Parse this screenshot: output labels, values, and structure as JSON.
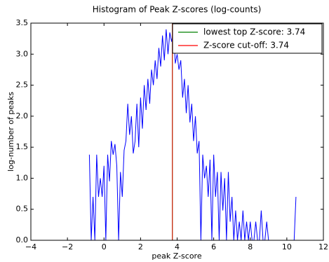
{
  "chart_data": {
    "type": "line",
    "title": "Histogram of Peak Z-scores (log-counts)",
    "xlabel": "peak Z-score",
    "ylabel": "log-number of peaks",
    "color": "#0000ff",
    "x": [
      -0.8,
      -0.7,
      -0.6,
      -0.5,
      -0.4,
      -0.3,
      -0.2,
      -0.1,
      0.0,
      0.1,
      0.2,
      0.3,
      0.4,
      0.5,
      0.6,
      0.7,
      0.8,
      0.9,
      1.0,
      1.1,
      1.2,
      1.3,
      1.4,
      1.5,
      1.6,
      1.7,
      1.8,
      1.9,
      2.0,
      2.1,
      2.2,
      2.3,
      2.4,
      2.5,
      2.6,
      2.7,
      2.8,
      2.9,
      3.0,
      3.1,
      3.2,
      3.3,
      3.4,
      3.5,
      3.6,
      3.7,
      3.8,
      3.9,
      4.0,
      4.1,
      4.2,
      4.3,
      4.4,
      4.5,
      4.6,
      4.7,
      4.8,
      4.9,
      5.0,
      5.1,
      5.2,
      5.3,
      5.4,
      5.5,
      5.6,
      5.7,
      5.8,
      5.9,
      6.0,
      6.1,
      6.2,
      6.3,
      6.4,
      6.5,
      6.6,
      6.7,
      6.8,
      6.9,
      7.0,
      7.1,
      7.2,
      7.3,
      7.4,
      7.5,
      7.6,
      7.7,
      7.8,
      7.9,
      8.0,
      8.1,
      8.2,
      8.3,
      8.4,
      8.5,
      8.6,
      8.7,
      8.8,
      8.9,
      9.0,
      9.1,
      9.2,
      9.3,
      9.4,
      9.5,
      9.6,
      9.7,
      9.8,
      9.9,
      10.0,
      10.1,
      10.2,
      10.3,
      10.4,
      10.5
    ],
    "values": [
      1.38,
      0,
      0.7,
      0,
      1.38,
      0.7,
      1.0,
      0.7,
      1.2,
      0,
      1.38,
      0.95,
      1.6,
      1.38,
      1.55,
      1.2,
      0,
      1.1,
      0.7,
      1.45,
      1.6,
      2.2,
      1.7,
      2.0,
      1.4,
      1.6,
      2.2,
      1.5,
      2.3,
      1.8,
      2.5,
      2.1,
      2.6,
      2.2,
      2.75,
      2.5,
      2.9,
      2.6,
      3.1,
      2.8,
      3.3,
      2.9,
      3.4,
      3.0,
      3.35,
      3.2,
      3.4,
      2.85,
      3.0,
      2.75,
      2.9,
      2.3,
      2.6,
      2.05,
      2.5,
      1.9,
      2.2,
      1.6,
      2.0,
      1.4,
      1.6,
      0,
      1.38,
      1.0,
      1.2,
      0.7,
      1.3,
      0,
      1.38,
      0.7,
      1.1,
      0,
      1.1,
      0.48,
      1.0,
      0,
      1.1,
      0.3,
      0.7,
      0,
      0.48,
      0,
      0.3,
      0,
      0.48,
      0,
      0.3,
      0,
      0.3,
      0,
      0,
      0.3,
      0,
      0,
      0.48,
      0,
      0,
      0.3,
      0,
      0,
      0,
      0,
      0,
      0,
      0,
      0,
      0,
      0,
      0,
      0,
      0,
      0,
      0,
      0.7
    ],
    "vlines": [
      {
        "name": "lowest top Z-score: 3.74",
        "x": 3.74,
        "color": "#008000"
      },
      {
        "name": "Z-score cut-off: 3.74",
        "x": 3.74,
        "color": "#ff0000"
      }
    ],
    "xlim": [
      -4,
      12
    ],
    "ylim": [
      0,
      3.5
    ],
    "xticks": [
      {
        "value": -4,
        "label": "−4"
      },
      {
        "value": -2,
        "label": "−2"
      },
      0,
      2,
      4,
      6,
      8,
      10,
      12
    ],
    "yticks": [
      {
        "value": 0,
        "label": "0.0"
      },
      {
        "value": 0.5,
        "label": "0.5"
      },
      {
        "value": 1,
        "label": "1.0"
      },
      {
        "value": 1.5,
        "label": "1.5"
      },
      {
        "value": 2,
        "label": "2.0"
      },
      {
        "value": 2.5,
        "label": "2.5"
      },
      {
        "value": 3,
        "label": "3.0"
      },
      {
        "value": 3.5,
        "label": "3.5"
      }
    ],
    "legend": "upper right",
    "grid": false
  }
}
